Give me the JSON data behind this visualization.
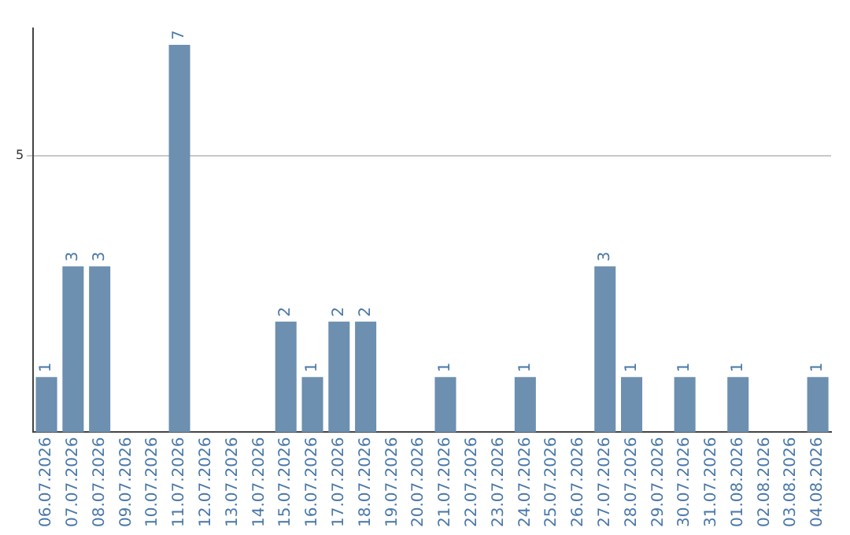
{
  "chart_data": {
    "type": "bar",
    "categories": [
      "06.07.2026",
      "07.07.2026",
      "08.07.2026",
      "09.07.2026",
      "10.07.2026",
      "11.07.2026",
      "12.07.2026",
      "13.07.2026",
      "14.07.2026",
      "15.07.2026",
      "16.07.2026",
      "17.07.2026",
      "18.07.2026",
      "19.07.2026",
      "20.07.2026",
      "21.07.2026",
      "22.07.2026",
      "23.07.2026",
      "24.07.2026",
      "25.07.2026",
      "26.07.2026",
      "27.07.2026",
      "28.07.2026",
      "29.07.2026",
      "30.07.2026",
      "31.07.2026",
      "01.08.2026",
      "02.08.2026",
      "03.08.2026",
      "04.08.2026"
    ],
    "values": [
      1,
      3,
      3,
      0,
      0,
      7,
      0,
      0,
      0,
      2,
      1,
      2,
      2,
      0,
      0,
      1,
      0,
      0,
      1,
      0,
      0,
      3,
      1,
      0,
      1,
      0,
      1,
      0,
      0,
      1
    ],
    "value_labels": [
      "1",
      "3",
      "3",
      null,
      null,
      "7",
      null,
      null,
      null,
      "2",
      "1",
      "2",
      "2",
      null,
      null,
      "1",
      null,
      null,
      "1",
      null,
      null,
      "3",
      "1",
      null,
      "1",
      null,
      "1",
      null,
      null,
      "1"
    ],
    "color": "#6d8fb0",
    "ylim": [
      0,
      7.3
    ],
    "yticks": [
      5
    ],
    "grid": "y",
    "legend": false
  }
}
